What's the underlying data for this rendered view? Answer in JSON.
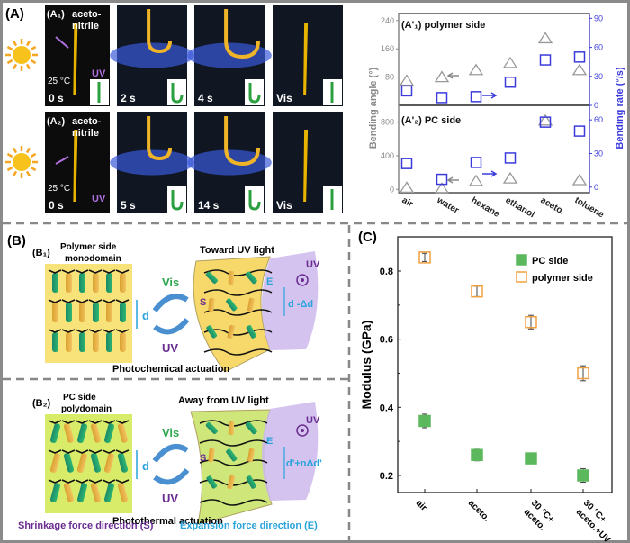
{
  "panel_a": {
    "label": "(A)",
    "rows": [
      {
        "label": "(A₁)",
        "solvent": [
          "aceto-",
          "nitrile"
        ],
        "temp": "25 °C",
        "uv": "UV",
        "times": [
          "0 s",
          "2 s",
          "4 s",
          "Vis"
        ]
      },
      {
        "label": "(A₂)",
        "solvent": [
          "aceto-",
          "nitrile"
        ],
        "temp": "25 °C",
        "uv": "UV",
        "times": [
          "0 s",
          "5 s",
          "14 s",
          "Vis"
        ]
      }
    ]
  },
  "panel_b": {
    "label": "(B)",
    "b1": {
      "label": "(B₁)",
      "title": [
        "Polymer side",
        "monodomain"
      ],
      "right_title": "Toward UV light",
      "vis": "Vis",
      "uv": "UV",
      "d": "d",
      "d2": "d -Δd",
      "s": "S",
      "e": "E",
      "uv_src": "UV",
      "caption": "Photochemical actuation"
    },
    "b2": {
      "label": "(B₂)",
      "title": [
        "PC side",
        "polydomain"
      ],
      "right_title": "Away from UV light",
      "vis": "Vis",
      "uv": "UV",
      "d": "d",
      "d2": "d'+nΔd'",
      "s": "S",
      "e": "E",
      "uv_src": "UV",
      "caption": "Photothermal actuation"
    },
    "legend_s": "Shrinkage force direction (S)",
    "legend_e": "Expansion force direction (E)"
  },
  "colors": {
    "gray": "#999999",
    "blue": "#3b3bdc",
    "red": "#e0201b",
    "green": "#5cb85c",
    "orange": "#f0a040",
    "purple": "#6a2c91",
    "cyan": "#29a3dc"
  },
  "chart_data": [
    {
      "type": "scatter",
      "title": "(A'₁) polymer side",
      "panel": "top",
      "categories": [
        "air",
        "water",
        "hexane",
        "ethanol",
        "aceto.",
        "toluene"
      ],
      "ylabel": "Bending angle (°)",
      "y2label": "Bending rate (°/s)",
      "ylim": [
        0,
        260
      ],
      "yticks": [
        80,
        160,
        240
      ],
      "y2lim": [
        0,
        95
      ],
      "y2ticks": [
        0,
        30,
        60,
        90
      ],
      "series": [
        {
          "name": "Bending angle",
          "axis": "left",
          "marker": "triangle",
          "values": [
            70,
            80,
            100,
            120,
            190,
            100
          ]
        },
        {
          "name": "Bending rate",
          "axis": "right",
          "marker": "square",
          "values": [
            15,
            8,
            9,
            24,
            47,
            50
          ]
        }
      ]
    },
    {
      "type": "scatter",
      "title": "(A'₂) PC side",
      "panel": "bottom",
      "categories": [
        "air",
        "water",
        "hexane",
        "ethanol",
        "aceto.",
        "toluene"
      ],
      "ylabel": "Bending angle (°)",
      "y2label": "Bending rate (°/s)",
      "ylim": [
        -40,
        1000
      ],
      "yticks": [
        0,
        400,
        800
      ],
      "y2lim": [
        -5,
        73
      ],
      "y2ticks": [
        0,
        30,
        60
      ],
      "series": [
        {
          "name": "Bending angle",
          "axis": "left",
          "marker": "triangle",
          "values": [
            20,
            10,
            100,
            130,
            820,
            110
          ]
        },
        {
          "name": "Bending rate",
          "axis": "right",
          "marker": "square",
          "values": [
            21,
            7,
            22,
            26,
            58,
            50
          ]
        }
      ]
    },
    {
      "type": "scatter",
      "title": "(C)",
      "categories": [
        "air",
        "aceto.",
        "30 °C+ aceto.",
        "30 °C+ aceto.+UV"
      ],
      "category_lines": [
        [
          "air"
        ],
        [
          "aceto."
        ],
        [
          "30 °C+",
          "aceto."
        ],
        [
          "30 °C+",
          "aceto.+UV"
        ]
      ],
      "ylabel": "Modulus (GPa)",
      "ylim": [
        0.15,
        0.9
      ],
      "yticks": [
        0.2,
        0.4,
        0.6,
        0.8
      ],
      "legend": "top-right",
      "series": [
        {
          "name": "PC side",
          "marker": "filled-square",
          "values": [
            0.36,
            0.26,
            0.25,
            0.2
          ],
          "errors": [
            0.02,
            0.017,
            0.015,
            0.02
          ]
        },
        {
          "name": "polymer side",
          "marker": "open-square",
          "values": [
            0.84,
            0.74,
            0.65,
            0.5
          ],
          "errors": [
            0.012,
            0.015,
            0.02,
            0.022
          ]
        }
      ]
    }
  ]
}
